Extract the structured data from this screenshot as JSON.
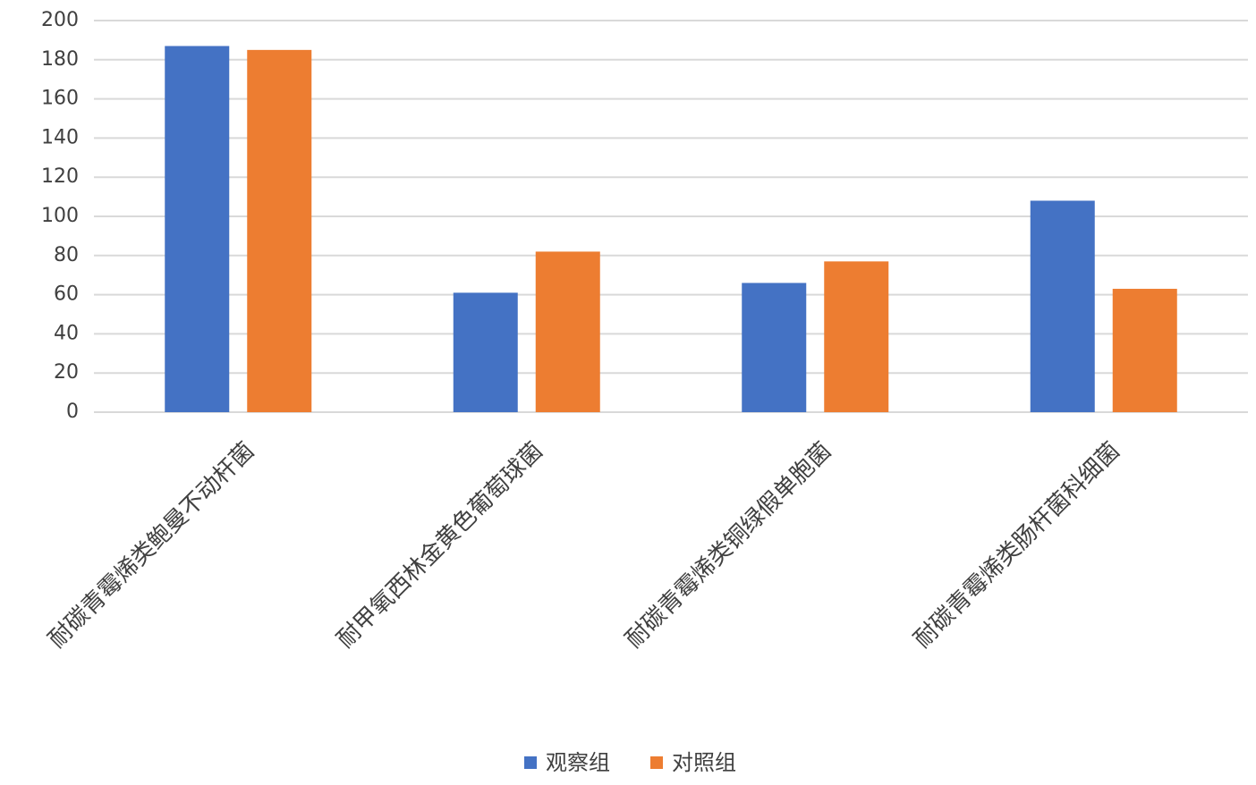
{
  "chart_data": {
    "type": "bar",
    "categories": [
      "耐碳青霉烯类鲍曼不动杆菌",
      "耐甲氧西林金黄色葡萄球菌",
      "耐碳青霉烯类铜绿假单胞菌",
      "耐碳青霉烯类肠杆菌科细菌"
    ],
    "series": [
      {
        "name": "观察组",
        "color": "#4472c4",
        "values": [
          187,
          61,
          66,
          108
        ]
      },
      {
        "name": "对照组",
        "color": "#ed7d31",
        "values": [
          185,
          82,
          77,
          63
        ]
      }
    ],
    "ylim": [
      0,
      200
    ],
    "yticks": [
      0,
      20,
      40,
      60,
      80,
      100,
      120,
      140,
      160,
      180,
      200
    ],
    "grid": true,
    "legend": "bottom"
  }
}
